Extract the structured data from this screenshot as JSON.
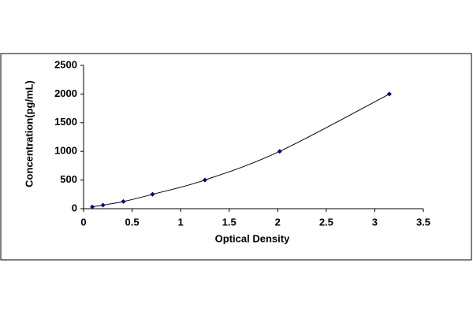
{
  "chart_data": {
    "type": "scatter",
    "line": true,
    "x_label": "Optical Density",
    "y_label": "Concentration(pg/mL)",
    "x": [
      0.09,
      0.2,
      0.41,
      0.71,
      1.25,
      2.02,
      3.15
    ],
    "series": [
      {
        "color": "#000080",
        "line_color": "#000000",
        "values": [
          31.25,
          62.5,
          125,
          250,
          500,
          1000,
          2000
        ]
      }
    ],
    "xlim": [
      0,
      3.5
    ],
    "xticks": [
      0,
      0.5,
      1,
      1.5,
      2,
      2.5,
      3,
      3.5
    ],
    "ylim": [
      0,
      2500
    ],
    "yticks": [
      0,
      500,
      1000,
      1500,
      2000,
      2500
    ]
  }
}
